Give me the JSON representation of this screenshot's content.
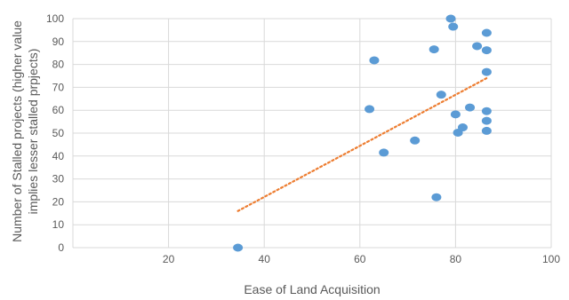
{
  "chart_data": {
    "type": "scatter",
    "xlabel": "Ease of Land Acquisition",
    "ylabel_lines": [
      "Number of Stalled projects (higher value",
      "implies lesser stalled prpjects)"
    ],
    "xlim": [
      0,
      100
    ],
    "ylim": [
      0,
      100
    ],
    "x_ticks": [
      20,
      40,
      60,
      80,
      100
    ],
    "y_ticks": [
      0,
      10,
      20,
      30,
      40,
      50,
      60,
      70,
      80,
      90,
      100
    ],
    "grid": true,
    "point_color": "#5b9bd5",
    "trendline": {
      "type": "linear",
      "color": "#ed7d31",
      "style": "dotted",
      "x": [
        34.5,
        86.5
      ],
      "y": [
        16,
        74
      ]
    },
    "points": [
      {
        "x": 34.5,
        "y": 0
      },
      {
        "x": 62,
        "y": 60.5
      },
      {
        "x": 63,
        "y": 81.8
      },
      {
        "x": 65,
        "y": 41.5
      },
      {
        "x": 71.5,
        "y": 46.8
      },
      {
        "x": 75.5,
        "y": 86.6
      },
      {
        "x": 76,
        "y": 22
      },
      {
        "x": 77,
        "y": 66.8
      },
      {
        "x": 79,
        "y": 100
      },
      {
        "x": 79.5,
        "y": 96.5
      },
      {
        "x": 80,
        "y": 58.2
      },
      {
        "x": 80.5,
        "y": 50.2
      },
      {
        "x": 81.5,
        "y": 52.5
      },
      {
        "x": 83,
        "y": 61.2
      },
      {
        "x": 84.5,
        "y": 88
      },
      {
        "x": 86.5,
        "y": 93.8
      },
      {
        "x": 86.5,
        "y": 86.2
      },
      {
        "x": 86.5,
        "y": 76.7
      },
      {
        "x": 86.5,
        "y": 59.6
      },
      {
        "x": 86.5,
        "y": 55.4
      },
      {
        "x": 86.5,
        "y": 51
      }
    ]
  }
}
